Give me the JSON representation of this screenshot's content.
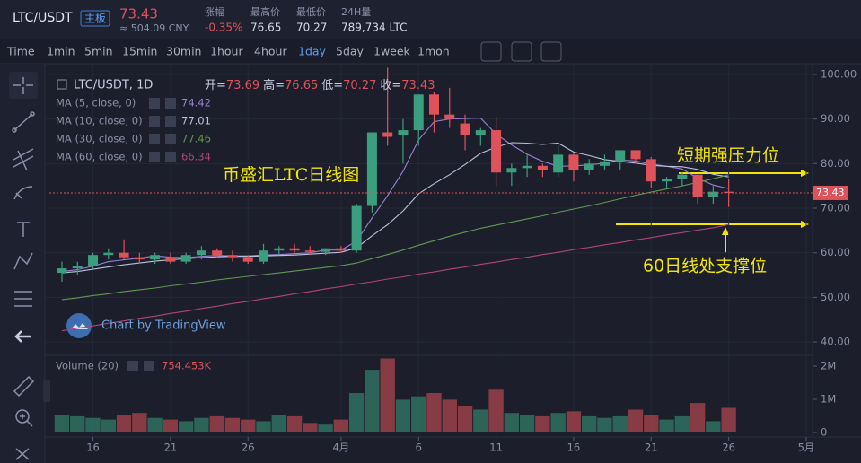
{
  "header": {
    "symbol": "LTC/USDT",
    "board": "主板",
    "price": "73.43",
    "cny": "≈ 504.09 CNY",
    "stats": [
      {
        "label": "涨幅",
        "value": "-0.35%"
      },
      {
        "label": "最高价",
        "value": "76.65"
      },
      {
        "label": "最低价",
        "value": "70.27"
      },
      {
        "label": "24H量",
        "value": "789,734 LTC"
      }
    ]
  },
  "timeframes": [
    "Time",
    "1min",
    "5min",
    "15min",
    "30min",
    "1hour",
    "4hour",
    "1day",
    "5day",
    "1week",
    "1mon"
  ],
  "active_timeframe": "1day",
  "chart_data": {
    "type": "candlestick",
    "legend_title": "LTC/USDT, 1D",
    "ohlc_legend": [
      {
        "label": "开=",
        "value": "73.69"
      },
      {
        "label": "高=",
        "value": "76.65"
      },
      {
        "label": "低=",
        "value": "70.27"
      },
      {
        "label": "收=",
        "value": "73.43"
      }
    ],
    "categories": [
      null,
      null,
      "16",
      null,
      null,
      null,
      null,
      "21",
      null,
      null,
      null,
      null,
      "26",
      null,
      null,
      null,
      null,
      null,
      "4月",
      null,
      null,
      null,
      null,
      "6",
      null,
      null,
      null,
      null,
      "11",
      null,
      null,
      null,
      null,
      "16",
      null,
      null,
      null,
      null,
      "21",
      null,
      null,
      null,
      null,
      "26",
      null,
      null,
      null,
      null,
      "5月"
    ],
    "open": [
      55.5,
      56.5,
      57,
      59.5,
      60,
      59,
      58.5,
      59,
      58,
      59.5,
      60.5,
      59.5,
      59,
      58,
      60.5,
      61,
      60.5,
      60.2,
      61,
      60.5,
      70.5,
      87,
      86.5,
      87.5,
      95.5,
      91,
      89,
      86.5,
      87.5,
      78,
      79,
      79.5,
      78,
      82,
      78.5,
      79.5,
      80.5,
      83,
      81,
      76,
      76.5,
      77.5,
      72.5,
      73.69,
      null,
      null,
      null,
      null,
      null
    ],
    "high": [
      58,
      58,
      60,
      61,
      63,
      60,
      60,
      60,
      60,
      61.5,
      61,
      60.5,
      59.5,
      62,
      61.5,
      62,
      61.5,
      61,
      61.5,
      71,
      87,
      101.5,
      90,
      95.5,
      96,
      97,
      91,
      88,
      90.5,
      80,
      82,
      80,
      84,
      82.5,
      81,
      82,
      83,
      83,
      81.5,
      77,
      78,
      77.5,
      75,
      76.65,
      null,
      null,
      null,
      null,
      null
    ],
    "low": [
      53.5,
      55,
      56.5,
      58.5,
      58.5,
      57.5,
      57.5,
      57.5,
      57.5,
      58.5,
      59,
      58,
      57.5,
      57.5,
      59.5,
      60,
      59.5,
      59.5,
      60,
      60,
      69,
      84,
      80,
      84,
      87,
      88,
      83,
      84,
      75,
      75,
      77,
      77,
      77,
      76,
      77.5,
      78.5,
      78.5,
      80,
      74.5,
      74.5,
      75,
      71,
      71,
      70.27,
      null,
      null,
      null,
      null,
      null
    ],
    "close": [
      56.5,
      57,
      59.5,
      60,
      59,
      58.5,
      59.5,
      58,
      59.5,
      60.5,
      59.5,
      59,
      58,
      60.5,
      61,
      60.5,
      60.2,
      61,
      60.5,
      70.5,
      87,
      86,
      87.5,
      95.5,
      91,
      90,
      86.5,
      87.5,
      78,
      79,
      79.5,
      78.5,
      82,
      78.5,
      80,
      80.5,
      83,
      81,
      76,
      76.5,
      77.5,
      72.5,
      73.69,
      73.43,
      null,
      null,
      null,
      null,
      null
    ],
    "up_color": "#3b9e7e",
    "down_color": "#e0525a",
    "ylim": [
      37.6,
      101.6
    ],
    "yticks": [
      {
        "value": 40,
        "label": "40.00"
      },
      {
        "value": 50,
        "label": "50.00"
      },
      {
        "value": 60,
        "label": "60.00"
      },
      {
        "value": 70,
        "label": "70.00"
      },
      {
        "value": 80,
        "label": "80.00"
      },
      {
        "value": 90,
        "label": "90.00"
      },
      {
        "value": 100,
        "label": "100.00"
      }
    ],
    "ma": [
      {
        "name": "MA (5, close, 0)",
        "color": "#9c7fd6",
        "values": [
          55.8,
          56.2,
          57,
          58,
          58.4,
          58.8,
          59.3,
          59,
          58.9,
          59.2,
          59.4,
          59.3,
          59.3,
          59.5,
          59.6,
          59.8,
          60,
          60.6,
          60.6,
          62.6,
          67.8,
          72.8,
          78.3,
          85.3,
          89.4,
          90,
          90.1,
          90.2,
          86.6,
          84.2,
          82.1,
          80.5,
          79.4,
          79.5,
          79.7,
          80.1,
          80.8,
          80.6,
          79.9,
          79.4,
          78.8,
          76.7,
          75.2,
          74.42,
          null,
          null,
          null,
          null,
          null
        ]
      },
      {
        "name": "MA (10, close, 0)",
        "color": "#b7c3dc",
        "values": [
          55.5,
          55.8,
          56.3,
          56.8,
          57.3,
          57.7,
          58.1,
          58.4,
          58.7,
          58.9,
          59.1,
          59.2,
          59.2,
          59.3,
          59.4,
          59.5,
          59.7,
          59.9,
          60.1,
          61.1,
          63.8,
          66.3,
          69.4,
          73.2,
          75.5,
          77.5,
          79.8,
          82.3,
          83.7,
          84.7,
          84.6,
          84.3,
          84.6,
          82.6,
          81.8,
          80.9,
          80.5,
          80.1,
          79.6,
          79.4,
          79.3,
          78.7,
          77.6,
          77.01,
          null,
          null,
          null,
          null,
          null
        ]
      },
      {
        "name": "MA (30, close, 0)",
        "color": "#5e9a4e",
        "values": [
          49.5,
          49.9,
          50.4,
          50.8,
          51.3,
          51.7,
          52.1,
          52.6,
          53,
          53.4,
          53.9,
          54.3,
          54.7,
          55.1,
          55.5,
          55.9,
          56.3,
          56.7,
          57.1,
          57.7,
          58.7,
          59.6,
          60.6,
          61.7,
          62.7,
          63.7,
          64.6,
          65.5,
          66.2,
          66.9,
          67.6,
          68.3,
          69.1,
          69.8,
          70.5,
          71.3,
          72.1,
          72.9,
          73.6,
          74.3,
          75,
          75.8,
          76.6,
          77.46,
          null,
          null,
          null,
          null,
          null
        ]
      },
      {
        "name": "MA (60, close, 0)",
        "color": "#b0447e",
        "values": [
          42.5,
          43.1,
          43.6,
          44.2,
          44.7,
          45.3,
          45.8,
          46.4,
          46.9,
          47.5,
          48,
          48.6,
          49.1,
          49.7,
          50.2,
          50.8,
          51.3,
          51.9,
          52.4,
          53,
          53.5,
          54.1,
          54.6,
          55.2,
          55.7,
          56.3,
          56.8,
          57.4,
          57.9,
          58.5,
          59,
          59.6,
          60.1,
          60.7,
          61.2,
          61.8,
          62.3,
          62.9,
          63.4,
          64,
          64.5,
          65.1,
          65.6,
          66.34,
          null,
          null,
          null,
          null,
          null
        ]
      }
    ],
    "volume": {
      "title": "Volume (20)",
      "last": "754.453K",
      "values": [
        550000,
        500000,
        450000,
        400000,
        550000,
        600000,
        450000,
        400000,
        350000,
        450000,
        500000,
        450000,
        400000,
        350000,
        550000,
        500000,
        300000,
        250000,
        400000,
        1200000,
        1900000,
        2240000,
        1000000,
        1100000,
        1200000,
        1000000,
        800000,
        700000,
        1300000,
        600000,
        550000,
        500000,
        600000,
        650000,
        500000,
        450000,
        500000,
        700000,
        550000,
        400000,
        500000,
        900000,
        350000,
        754453,
        null,
        null,
        null,
        null,
        null
      ],
      "ylim": [
        -135000,
        2216000
      ],
      "yticks": [
        {
          "value": 2000000,
          "label": "2M"
        },
        {
          "value": 1000000,
          "label": "1M"
        },
        0
      ]
    },
    "annotations": {
      "title": "币盛汇LTC日线图",
      "resistance": "短期强压力位",
      "support": "60日线处支撑位"
    },
    "watermark": "Chart by TradingView"
  }
}
